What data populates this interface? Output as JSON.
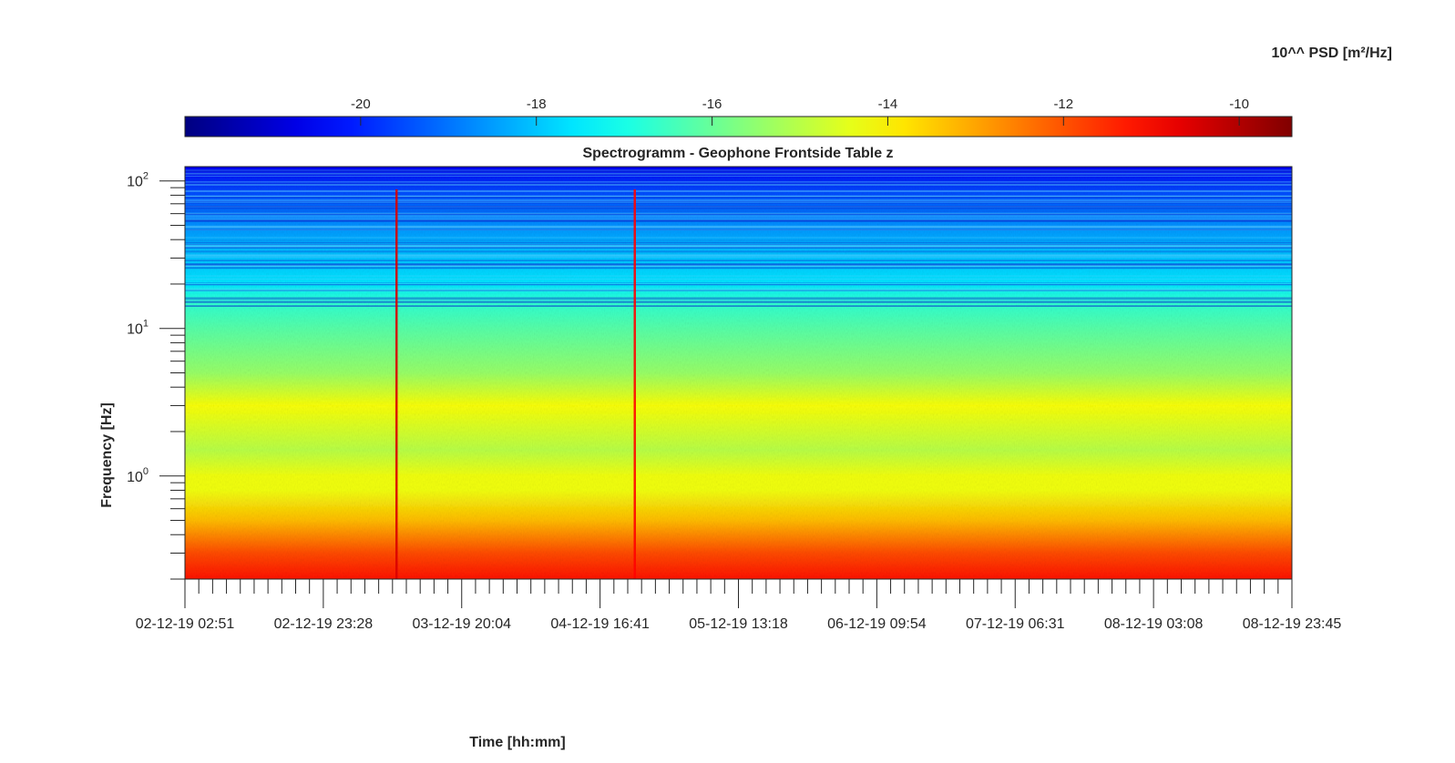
{
  "chart_data": {
    "type": "heatmap",
    "title": "Spectrogramm - Geophone Frontside Table z",
    "xlabel": "Time [hh:mm]",
    "ylabel": "Frequency [Hz]",
    "y_scale": "log",
    "ylim": [
      0.2,
      125
    ],
    "x_ticks": [
      "02-12-19 02:51",
      "02-12-19 23:28",
      "03-12-19 20:04",
      "04-12-19 16:41",
      "05-12-19 13:18",
      "06-12-19 09:54",
      "07-12-19 06:31",
      "08-12-19 03:08",
      "08-12-19 23:45"
    ],
    "y_ticks": [
      {
        "base": "10",
        "exp": "0"
      },
      {
        "base": "10",
        "exp": "1"
      },
      {
        "base": "10",
        "exp": "2"
      }
    ],
    "colorbar": {
      "label": "10^^ PSD [m²/Hz]",
      "colormap": "jet",
      "range": [
        -22,
        -9.4
      ],
      "ticks": [
        "-20",
        "-18",
        "-16",
        "-14",
        "-12",
        "-10"
      ],
      "tick_values": [
        -20,
        -18,
        -16,
        -14,
        -12,
        -10
      ],
      "location": "top"
    },
    "psd_profile": [
      {
        "freq": 0.2,
        "psd": -11.2
      },
      {
        "freq": 0.3,
        "psd": -11.9
      },
      {
        "freq": 0.5,
        "psd": -13.3
      },
      {
        "freq": 0.8,
        "psd": -14.3
      },
      {
        "freq": 1.0,
        "psd": -14.3
      },
      {
        "freq": 1.5,
        "psd": -15.0
      },
      {
        "freq": 3.0,
        "psd": -14.2
      },
      {
        "freq": 5.0,
        "psd": -15.4
      },
      {
        "freq": 10.0,
        "psd": -16.2
      },
      {
        "freq": 16.0,
        "psd": -16.8
      },
      {
        "freq": 20.0,
        "psd": -17.6
      },
      {
        "freq": 40.0,
        "psd": -18.3
      },
      {
        "freq": 80.0,
        "psd": -19.4
      },
      {
        "freq": 125.0,
        "psd": -20.6
      }
    ],
    "events": [
      {
        "time": "03-12-19 10:20",
        "peak_psd": -10.5
      },
      {
        "time": "04-12-19 21:50",
        "peak_psd": -11.0
      }
    ]
  }
}
